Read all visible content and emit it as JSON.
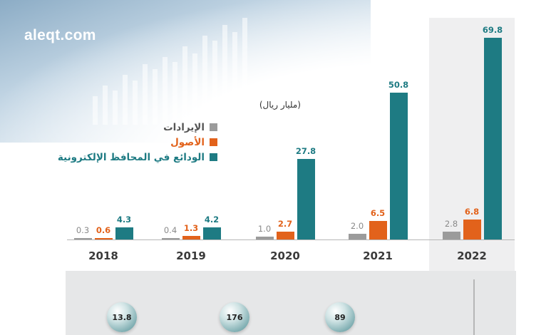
{
  "brand": "aleqt.com",
  "unit_label": "(مليار ريال)",
  "legend": [
    {
      "label": "الإيرادات",
      "color": "#9b9b9b"
    },
    {
      "label": "الأصول",
      "color": "#e2621b"
    },
    {
      "label": "الودائع في المحافظ الإلكترونية",
      "color": "#1e7b83"
    }
  ],
  "chart_data": {
    "type": "bar",
    "categories": [
      "2018",
      "2019",
      "2020",
      "2021",
      "2022"
    ],
    "series": [
      {
        "name": "الإيرادات",
        "color": "#9b9b9b",
        "values": [
          0.3,
          0.4,
          1.0,
          2.0,
          2.8
        ],
        "labels": [
          "0.3",
          "0.4",
          "1.0",
          "2.0",
          "2.8"
        ]
      },
      {
        "name": "الأصول",
        "color": "#e2621b",
        "values": [
          0.6,
          1.3,
          2.7,
          6.5,
          6.8
        ],
        "labels": [
          "0.6",
          "1.3",
          "2.7",
          "6.5",
          "6.8"
        ]
      },
      {
        "name": "الودائع في المحافظ الإلكترونية",
        "color": "#1e7b83",
        "values": [
          4.3,
          4.2,
          27.8,
          50.8,
          69.8
        ],
        "labels": [
          "4.3",
          "4.2",
          "27.8",
          "50.8",
          "69.8"
        ]
      }
    ],
    "highlight_category": "2022"
  },
  "bottom_stats": [
    "13.8",
    "176",
    "89"
  ]
}
